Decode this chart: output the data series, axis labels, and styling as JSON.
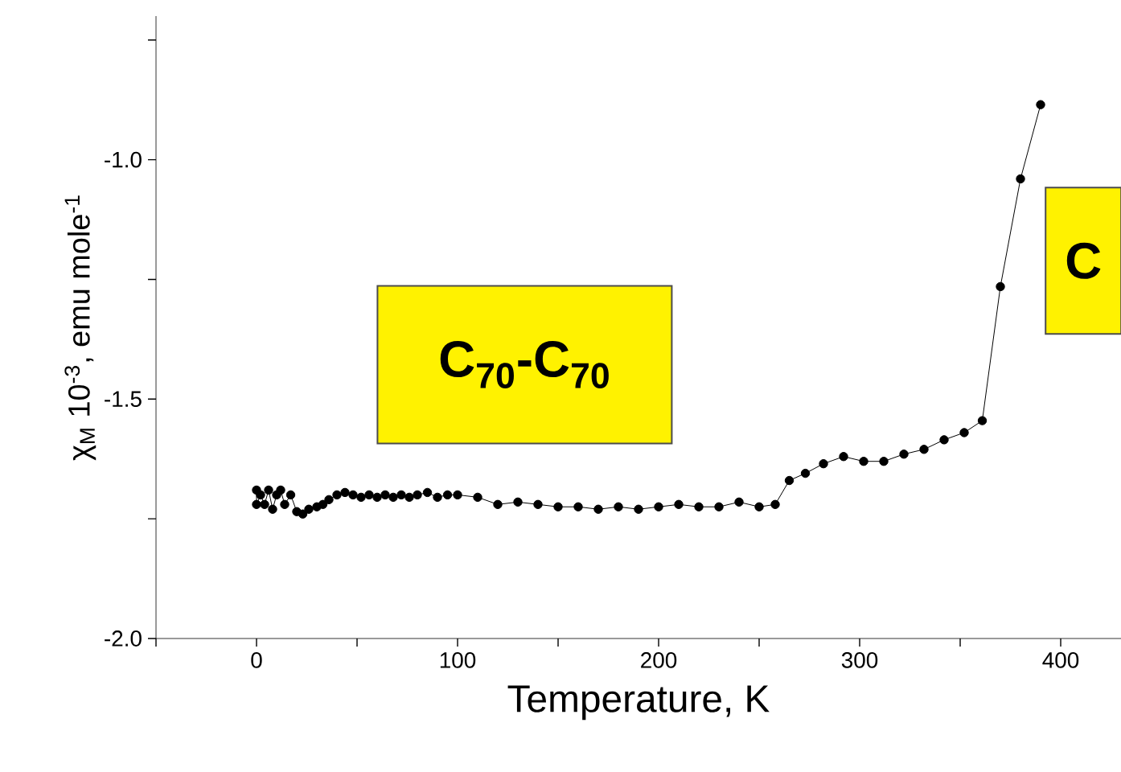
{
  "chart_data": {
    "type": "line",
    "xlabel": "Temperature, K",
    "ylabel": "χ$_{M}$ 10$^{-3}$, emu mole$^{-1}$",
    "x": [
      0,
      0,
      2,
      4,
      6,
      8,
      10,
      12,
      14,
      17,
      20,
      23,
      26,
      30,
      33,
      36,
      40,
      44,
      48,
      52,
      56,
      60,
      64,
      68,
      72,
      76,
      80,
      85,
      90,
      95,
      100,
      110,
      120,
      130,
      140,
      150,
      160,
      170,
      180,
      190,
      200,
      210,
      220,
      230,
      240,
      250,
      258,
      265,
      273,
      282,
      292,
      302,
      312,
      322,
      332,
      342,
      352,
      361,
      370,
      380,
      390
    ],
    "series": [
      {
        "color": "#000000",
        "values": [
          -1.69,
          -1.72,
          -1.7,
          -1.72,
          -1.69,
          -1.73,
          -1.7,
          -1.69,
          -1.72,
          -1.7,
          -1.735,
          -1.74,
          -1.73,
          -1.725,
          -1.72,
          -1.71,
          -1.7,
          -1.695,
          -1.7,
          -1.705,
          -1.7,
          -1.705,
          -1.7,
          -1.705,
          -1.7,
          -1.705,
          -1.7,
          -1.695,
          -1.705,
          -1.7,
          -1.7,
          -1.705,
          -1.72,
          -1.715,
          -1.72,
          -1.725,
          -1.725,
          -1.73,
          -1.725,
          -1.73,
          -1.725,
          -1.72,
          -1.725,
          -1.725,
          -1.715,
          -1.725,
          -1.72,
          -1.67,
          -1.655,
          -1.635,
          -1.62,
          -1.63,
          -1.63,
          -1.615,
          -1.605,
          -1.585,
          -1.57,
          -1.545,
          -1.265,
          -1.04,
          -0.885
        ]
      }
    ],
    "marker": "circle",
    "line_style": "solid",
    "xlim": [
      -50,
      430
    ],
    "ylim": [
      -2.0,
      -0.7
    ],
    "xticks": [
      {
        "value": -50,
        "label": null
      },
      0,
      {
        "value": 50,
        "label": null
      },
      100,
      {
        "value": 150,
        "label": null
      },
      200,
      {
        "value": 250,
        "label": null
      },
      300,
      {
        "value": 350,
        "label": null
      },
      400
    ],
    "yticks": [
      {
        "value": -2.0,
        "label": "-2.0"
      },
      {
        "value": -1.75,
        "label": null
      },
      {
        "value": -1.5,
        "label": "-1.5"
      },
      {
        "value": -1.25,
        "label": null
      },
      {
        "value": -1.0,
        "label": "-1.0"
      },
      {
        "value": -0.75,
        "label": null
      }
    ],
    "annotations": [
      "C$_{70}$-C$_{70}$",
      "C"
    ]
  }
}
